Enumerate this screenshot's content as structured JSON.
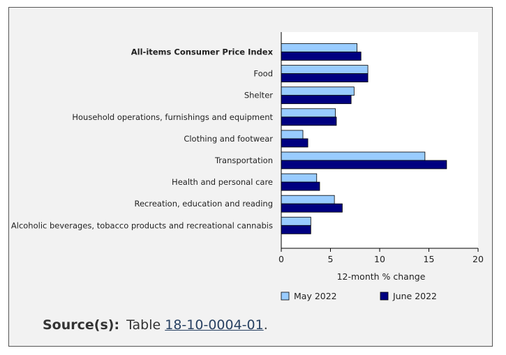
{
  "chart_data": {
    "type": "bar",
    "orientation": "horizontal",
    "categories": [
      "All-items Consumer Price Index",
      "Food",
      "Shelter",
      "Household operations, furnishings and equipment",
      "Clothing and footwear",
      "Transportation",
      "Health and personal care",
      "Recreation, education and reading",
      "Alcoholic beverages, tobacco products and recreational cannabis"
    ],
    "series": [
      {
        "name": "May 2022",
        "color": "#99ccff",
        "values": [
          7.7,
          8.8,
          7.4,
          5.5,
          2.2,
          14.6,
          3.6,
          5.4,
          3.0
        ]
      },
      {
        "name": "June 2022",
        "color": "#000080",
        "values": [
          8.1,
          8.8,
          7.1,
          5.6,
          2.7,
          16.8,
          3.9,
          6.2,
          3.0
        ]
      }
    ],
    "xlabel": "12-month % change",
    "xlim": [
      0,
      20
    ],
    "xticks": [
      "0",
      "5",
      "10",
      "15",
      "20"
    ],
    "grid": false,
    "legend_position": "bottom"
  },
  "source": {
    "label": "Source(s):",
    "prefix": "Table",
    "link_text": "18-10-0004-01",
    "suffix": "."
  }
}
